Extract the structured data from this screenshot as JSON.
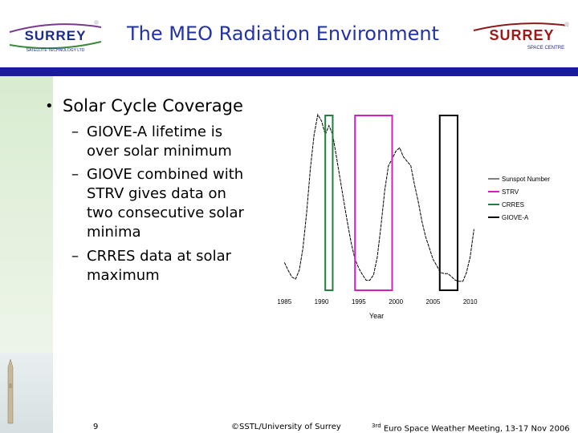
{
  "header": {
    "title": "The MEO Radiation Environment",
    "logo_left": {
      "word": "SURREY",
      "tagline": "SATELLITE TECHNOLOGY LTD"
    },
    "logo_right": {
      "word": "SURREY",
      "tagline": "SPACE CENTRE"
    }
  },
  "content": {
    "bullet": "Solar Cycle Coverage",
    "subitems": [
      {
        "dash": "–",
        "lines": [
          "GIOVE-A lifetime is",
          "over solar minimum"
        ]
      },
      {
        "dash": "–",
        "lines": [
          "GIOVE combined with",
          "STRV gives data on",
          "two consecutive solar",
          "minima"
        ]
      },
      {
        "dash": "–",
        "lines": [
          "CRRES data at solar",
          "maximum"
        ]
      }
    ]
  },
  "chart_data": {
    "type": "line",
    "xlabel": "Year",
    "ylabel": "",
    "xlim": [
      1984,
      2011
    ],
    "ylim": [
      0,
      160
    ],
    "x_ticks": [
      "1985",
      "1990",
      "1995",
      "2000",
      "2005",
      "2010"
    ],
    "series": [
      {
        "name": "Sunspot Number",
        "color": "#000000",
        "x": [
          1985.0,
          1985.5,
          1986.0,
          1986.5,
          1987.0,
          1987.5,
          1988.0,
          1988.5,
          1989.0,
          1989.5,
          1990.0,
          1990.5,
          1991.0,
          1991.5,
          1992.0,
          1992.5,
          1993.0,
          1993.5,
          1994.0,
          1994.5,
          1995.0,
          1995.5,
          1996.0,
          1996.5,
          1997.0,
          1997.5,
          1998.0,
          1998.5,
          1999.0,
          1999.5,
          2000.0,
          2000.5,
          2001.0,
          2001.5,
          2002.0,
          2002.5,
          2003.0,
          2003.5,
          2004.0,
          2004.5,
          2005.0,
          2005.5,
          2006.0,
          2006.5,
          2007.0,
          2007.5,
          2008.0,
          2008.5,
          2009.0,
          2009.5,
          2010.0,
          2010.5
        ],
        "values": [
          25,
          18,
          12,
          10,
          18,
          38,
          70,
          110,
          140,
          158,
          152,
          140,
          148,
          140,
          120,
          100,
          80,
          60,
          42,
          28,
          20,
          14,
          9,
          9,
          14,
          30,
          58,
          90,
          112,
          118,
          125,
          128,
          120,
          116,
          112,
          95,
          80,
          62,
          48,
          38,
          28,
          22,
          16,
          15,
          15,
          12,
          9,
          8,
          8,
          16,
          30,
          55
        ]
      },
      {
        "name": "STRV",
        "color": "#d020c0",
        "x": [
          1994.5,
          1999.5
        ]
      },
      {
        "name": "CRRES",
        "color": "#208040",
        "x": [
          1990.5,
          1991.5
        ]
      },
      {
        "name": "GIOVE-A",
        "color": "#000000",
        "x": [
          2005.9,
          2008.3
        ]
      }
    ],
    "legend_position": "right"
  },
  "footer": {
    "page_number": "9",
    "copyright": "©SSTL/University of Surrey",
    "meeting_sup": "3rd",
    "meeting": " Euro Space Weather Meeting, 13-17 Nov 2006"
  },
  "colors": {
    "title": "#2233a8",
    "bar": "#1a1aa0",
    "logo": "#1a2a8a"
  }
}
